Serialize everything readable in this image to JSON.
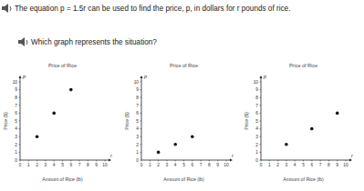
{
  "question": {
    "statement": "The equation p = 1.5r can be used to find the price, p, in dollars for r pounds of rice.",
    "prompt": "Which graph represents the situation?"
  },
  "chart_data": [
    {
      "type": "scatter",
      "title": "Price of Rice",
      "x_label": "Amount of Rice (lb)",
      "y_label": "Price ($)",
      "annotations": [
        "p",
        "r"
      ],
      "x": [
        2,
        4,
        6
      ],
      "values": [
        3,
        6,
        9
      ],
      "color": "#111111",
      "xlim": [
        0,
        10
      ],
      "ylim": [
        0,
        10
      ],
      "xticks": [
        0,
        1,
        2,
        3,
        4,
        5,
        6,
        7,
        8,
        9,
        10
      ],
      "yticks": [
        0,
        1,
        2,
        3,
        4,
        5,
        6,
        7,
        8,
        9,
        10
      ],
      "grid": false
    },
    {
      "type": "scatter",
      "title": "Price of Rice",
      "x_label": "Amount of Rice (lb)",
      "y_label": "Price ($)",
      "annotations": [
        "p",
        "r"
      ],
      "x": [
        2,
        4,
        6
      ],
      "values": [
        1,
        2,
        3
      ],
      "color": "#111111",
      "xlim": [
        0,
        10
      ],
      "ylim": [
        0,
        10
      ],
      "xticks": [
        0,
        1,
        2,
        3,
        4,
        5,
        6,
        7,
        8,
        9,
        10
      ],
      "yticks": [
        0,
        1,
        2,
        3,
        4,
        5,
        6,
        7,
        8,
        9,
        10
      ],
      "grid": false
    },
    {
      "type": "scatter",
      "title": "Price of Rice",
      "x_label": "Amount of Rice (lb)",
      "y_label": "Price ($)",
      "annotations": [
        "p",
        "r"
      ],
      "x": [
        3,
        6,
        9
      ],
      "values": [
        2,
        4,
        6
      ],
      "color": "#111111",
      "xlim": [
        0,
        10
      ],
      "ylim": [
        0,
        10
      ],
      "xticks": [
        0,
        1,
        2,
        3,
        4,
        5,
        6,
        7,
        8,
        9,
        10
      ],
      "yticks": [
        0,
        1,
        2,
        3,
        4,
        5,
        6,
        7,
        8,
        9,
        10
      ],
      "grid": false
    }
  ]
}
